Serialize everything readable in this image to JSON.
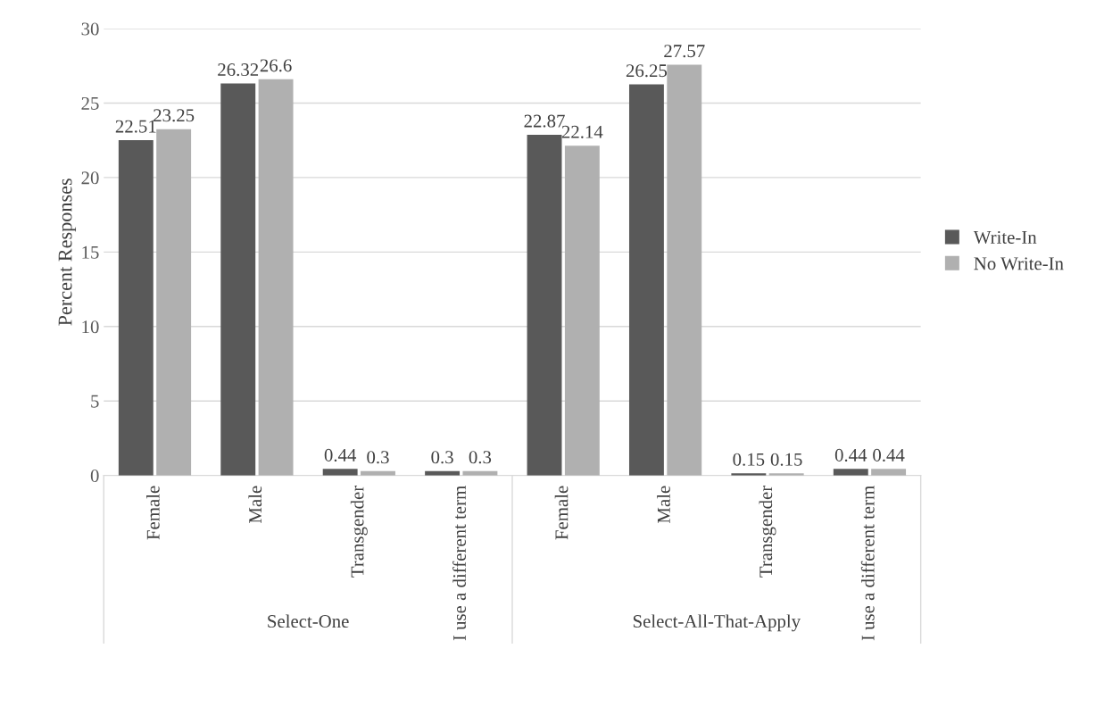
{
  "chart_data": {
    "type": "bar",
    "ylabel": "Percent Responses",
    "categories": [
      "Female",
      "Male",
      "Transgender",
      "I use a different term",
      "Female",
      "Male",
      "Transgender",
      "I use a different term"
    ],
    "series": [
      {
        "name": "Write-In",
        "color": "#595959",
        "values": [
          22.51,
          26.32,
          0.44,
          0.3,
          22.87,
          26.25,
          0.15,
          0.44
        ]
      },
      {
        "name": "No Write-In",
        "color": "#b0b0b0",
        "values": [
          23.25,
          26.6,
          0.3,
          0.3,
          22.14,
          27.57,
          0.15,
          0.44
        ]
      }
    ],
    "annotations": [
      "Select-One",
      "Select-All-That-Apply"
    ],
    "ylim": [
      0,
      30
    ],
    "yticks": [
      0,
      5,
      10,
      15,
      20,
      25,
      30
    ],
    "grid": "y",
    "legend": "right",
    "data_labels": true
  }
}
